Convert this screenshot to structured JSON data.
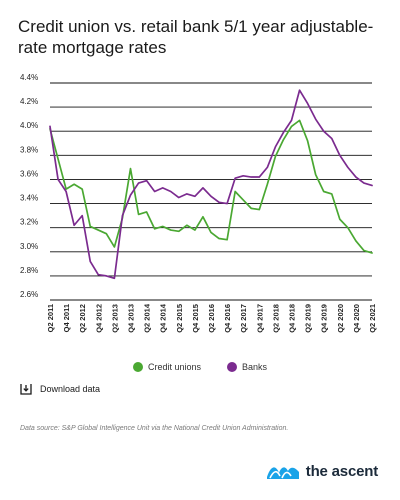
{
  "title": "Credit union vs. retail bank 5/1 year adjustable-rate mortgage rates",
  "legend": {
    "credit_unions": "Credit unions",
    "banks": "Banks"
  },
  "download_label": "Download data",
  "source": "Data source: S&P Global Intelligence Unit via the National Credit Union Administration.",
  "brand": "the ascent",
  "colors": {
    "credit_unions": "#4aa832",
    "banks": "#7b2b8f",
    "logo_blue": "#1aa3e8",
    "text": "#1a1a1a"
  },
  "chart_data": {
    "type": "line",
    "title": "Credit union vs. retail bank 5/1 year adjustable-rate mortgage rates",
    "xlabel": "",
    "ylabel": "",
    "ylim": [
      2.6,
      4.4
    ],
    "yticks": [
      "2.6%",
      "2.8%",
      "3.0%",
      "3.2%",
      "3.4%",
      "3.6%",
      "3.8%",
      "4.0%",
      "4.2%",
      "4.4%"
    ],
    "ytick_values": [
      2.6,
      2.8,
      3.0,
      3.2,
      3.4,
      3.6,
      3.8,
      4.0,
      4.2,
      4.4
    ],
    "grid": "horizontal",
    "legend_position": "bottom",
    "x": [
      "Q2 2011",
      "Q3 2011",
      "Q4 2011",
      "Q1 2012",
      "Q2 2012",
      "Q3 2012",
      "Q4 2012",
      "Q1 2013",
      "Q2 2013",
      "Q3 2013",
      "Q4 2013",
      "Q1 2014",
      "Q2 2014",
      "Q3 2014",
      "Q4 2014",
      "Q1 2015",
      "Q2 2015",
      "Q3 2015",
      "Q4 2015",
      "Q1 2016",
      "Q2 2016",
      "Q3 2016",
      "Q4 2016",
      "Q1 2017",
      "Q2 2017",
      "Q3 2017",
      "Q4 2017",
      "Q1 2018",
      "Q2 2018",
      "Q3 2018",
      "Q4 2018",
      "Q1 2019",
      "Q2 2019",
      "Q3 2019",
      "Q4 2019",
      "Q1 2020",
      "Q2 2020",
      "Q3 2020",
      "Q4 2020",
      "Q1 2021",
      "Q2 2021"
    ],
    "xtick_labels": [
      "Q2 2011",
      "Q4 2011",
      "Q2 2012",
      "Q4 2012",
      "Q2 2013",
      "Q4 2013",
      "Q2 2014",
      "Q4 2014",
      "Q2 2015",
      "Q4 2015",
      "Q2 2016",
      "Q4 2016",
      "Q2 2017",
      "Q4 2017",
      "Q2 2018",
      "Q4 2018",
      "Q2 2019",
      "Q4 2019",
      "Q2 2020",
      "Q4 2020",
      "Q2 2021"
    ],
    "series": [
      {
        "name": "Credit unions",
        "values": [
          4.02,
          3.77,
          3.52,
          3.56,
          3.52,
          3.21,
          3.18,
          3.15,
          3.04,
          3.28,
          3.69,
          3.31,
          3.33,
          3.19,
          3.21,
          3.18,
          3.17,
          3.22,
          3.18,
          3.29,
          3.16,
          3.11,
          3.1,
          3.5,
          3.43,
          3.36,
          3.35,
          3.56,
          3.79,
          3.93,
          4.04,
          4.09,
          3.92,
          3.64,
          3.5,
          3.48,
          3.27,
          3.2,
          3.09,
          3.01,
          2.99
        ]
      },
      {
        "name": "Banks",
        "values": [
          4.04,
          3.6,
          3.5,
          3.22,
          3.3,
          2.92,
          2.81,
          2.8,
          2.78,
          3.3,
          3.47,
          3.57,
          3.59,
          3.5,
          3.53,
          3.5,
          3.45,
          3.48,
          3.46,
          3.53,
          3.46,
          3.41,
          3.4,
          3.61,
          3.63,
          3.62,
          3.62,
          3.7,
          3.87,
          3.99,
          4.09,
          4.34,
          4.23,
          4.1,
          4.0,
          3.94,
          3.8,
          3.7,
          3.62,
          3.57,
          3.55
        ]
      }
    ]
  }
}
